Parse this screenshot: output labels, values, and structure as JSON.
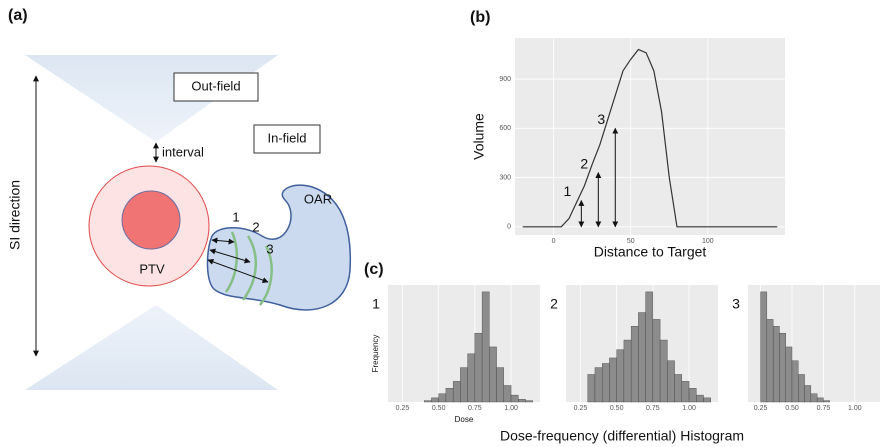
{
  "panel_labels": [
    "(a)",
    "(b)",
    "(c)"
  ],
  "diagram": {
    "out_field": "Out-field",
    "in_field": "In-field",
    "interval": "interval",
    "si_direction": "SI direction",
    "ptv": "PTV",
    "oar": "OAR",
    "regions": [
      "1",
      "2",
      "3"
    ]
  },
  "chart_data": [
    {
      "type": "line",
      "x_label": "Distance to Target",
      "y_label": "Volume",
      "color": "#333333",
      "x": [
        -20,
        -15,
        -10,
        -5,
        0,
        5,
        10,
        15,
        20,
        25,
        30,
        35,
        40,
        45,
        50,
        55,
        60,
        65,
        70,
        75,
        80,
        85,
        90,
        95,
        100,
        105,
        110,
        115,
        120,
        125,
        130,
        135,
        140,
        145
      ],
      "values": [
        0,
        0,
        0,
        0,
        0,
        0,
        50,
        150,
        250,
        380,
        500,
        650,
        800,
        950,
        1020,
        1080,
        1060,
        950,
        700,
        300,
        0,
        0,
        0,
        0,
        0,
        0,
        0,
        0,
        0,
        0,
        0,
        0,
        0,
        0
      ],
      "xlim": [
        -25,
        150
      ],
      "ylim": [
        -50,
        1150
      ],
      "xticks": [
        0,
        50,
        100
      ],
      "yticks": [
        0,
        300,
        600,
        900
      ],
      "annotations": [
        {
          "label": "1",
          "x": 18,
          "y": 160
        },
        {
          "label": "2",
          "x": 29,
          "y": 330
        },
        {
          "label": "3",
          "x": 40,
          "y": 600
        }
      ]
    },
    {
      "type": "histogram",
      "label": "1",
      "x_label": "Dose",
      "y_label": "Frequency",
      "color": "#8c8c8c",
      "bins": [
        0.15,
        0.2,
        0.25,
        0.3,
        0.35,
        0.4,
        0.45,
        0.5,
        0.55,
        0.6,
        0.65,
        0.7,
        0.75,
        0.8,
        0.85,
        0.9,
        0.95,
        1.0,
        1.05,
        1.1,
        1.15
      ],
      "values": [
        0,
        0,
        0,
        0,
        0,
        0.1,
        0.3,
        0.6,
        1,
        1.5,
        2.5,
        3.5,
        5,
        8,
        4,
        2.5,
        1.2,
        0.5,
        0.2,
        0.1
      ],
      "xlim": [
        0.15,
        1.2
      ],
      "ylim": [
        0,
        8.5
      ],
      "xticks": [
        {
          "value": 0.25,
          "label": "0.25"
        },
        {
          "value": 0.5,
          "label": "0.50"
        },
        {
          "value": 0.75,
          "label": "0.75"
        },
        {
          "value": 1,
          "label": "1.00"
        }
      ]
    },
    {
      "type": "histogram",
      "label": "2",
      "color": "#8c8c8c",
      "bins": [
        0.15,
        0.2,
        0.25,
        0.3,
        0.35,
        0.4,
        0.45,
        0.5,
        0.55,
        0.6,
        0.65,
        0.7,
        0.75,
        0.8,
        0.85,
        0.9,
        0.95,
        1.0,
        1.05,
        1.1,
        1.15
      ],
      "values": [
        0,
        0,
        0,
        2,
        2.5,
        2.8,
        3.2,
        3.8,
        4.5,
        5.5,
        6.5,
        8,
        6,
        4.5,
        3,
        2,
        1.5,
        1,
        0.5,
        0.3
      ],
      "xlim": [
        0.15,
        1.2
      ],
      "ylim": [
        0,
        8.5
      ],
      "xticks": [
        {
          "value": 0.25,
          "label": "0.25"
        },
        {
          "value": 0.5,
          "label": "0.50"
        },
        {
          "value": 0.75,
          "label": "0.75"
        },
        {
          "value": 1,
          "label": "1.00"
        }
      ]
    },
    {
      "type": "histogram",
      "label": "3",
      "color": "#8c8c8c",
      "bins": [
        0.15,
        0.2,
        0.25,
        0.3,
        0.35,
        0.4,
        0.45,
        0.5,
        0.55,
        0.6,
        0.65,
        0.7,
        0.75,
        0.8,
        0.85,
        0.9,
        0.95,
        1.0,
        1.05,
        1.1,
        1.15
      ],
      "values": [
        0,
        0,
        8,
        6,
        5.5,
        5,
        4,
        3,
        2,
        1.2,
        0.6,
        0.3,
        0.1,
        0,
        0,
        0,
        0,
        0,
        0,
        0
      ],
      "xlim": [
        0.15,
        1.2
      ],
      "ylim": [
        0,
        8.5
      ],
      "xticks": [
        {
          "value": 0.25,
          "label": "0.25"
        },
        {
          "value": 0.5,
          "label": "0.50"
        },
        {
          "value": 0.75,
          "label": "0.75"
        },
        {
          "value": 1,
          "label": "1.00"
        }
      ]
    }
  ],
  "caption": "Dose-frequency (differential) Histogram"
}
